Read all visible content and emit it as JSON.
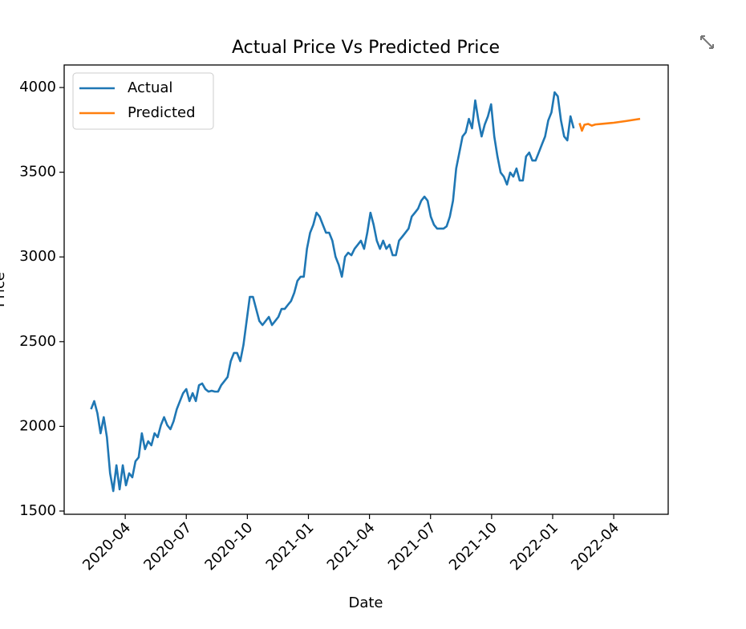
{
  "chart_data": {
    "type": "line",
    "title": "Actual Price Vs Predicted Price",
    "xlabel": "Date",
    "ylabel": "Price",
    "xlim": [
      2020.0,
      2022.473
    ],
    "ylim": [
      1481,
      4133
    ],
    "xticks": [
      {
        "value": 2020.25,
        "label": "2020-04"
      },
      {
        "value": 2020.5,
        "label": "2020-07"
      },
      {
        "value": 2020.75,
        "label": "2020-10"
      },
      {
        "value": 2021.0,
        "label": "2021-01"
      },
      {
        "value": 2021.25,
        "label": "2021-04"
      },
      {
        "value": 2021.5,
        "label": "2021-07"
      },
      {
        "value": 2021.75,
        "label": "2021-10"
      },
      {
        "value": 2022.0,
        "label": "2022-01"
      },
      {
        "value": 2022.25,
        "label": "2022-04"
      }
    ],
    "yticks": [
      1500,
      2000,
      2500,
      3000,
      3500,
      4000
    ],
    "legend": "upper left",
    "grid": false,
    "series": [
      {
        "name": "Actual",
        "color": "#1f77b4",
        "x": [
          2020.11,
          2020.123,
          2020.136,
          2020.149,
          2020.162,
          2020.175,
          2020.188,
          2020.201,
          2020.214,
          2020.227,
          2020.24,
          2020.253,
          2020.266,
          2020.279,
          2020.292,
          2020.305,
          2020.318,
          2020.331,
          2020.344,
          2020.357,
          2020.37,
          2020.383,
          2020.396,
          2020.409,
          2020.422,
          2020.435,
          2020.448,
          2020.461,
          2020.474,
          2020.487,
          2020.5,
          2020.513,
          2020.526,
          2020.539,
          2020.552,
          2020.565,
          2020.578,
          2020.591,
          2020.604,
          2020.617,
          2020.63,
          2020.643,
          2020.656,
          2020.669,
          2020.682,
          2020.695,
          2020.708,
          2020.721,
          2020.734,
          2020.747,
          2020.76,
          2020.773,
          2020.786,
          2020.799,
          2020.812,
          2020.825,
          2020.838,
          2020.851,
          2020.864,
          2020.877,
          2020.89,
          2020.903,
          2020.916,
          2020.929,
          2020.942,
          2020.955,
          2020.968,
          2020.981,
          2020.994,
          2021.007,
          2021.02,
          2021.033,
          2021.046,
          2021.059,
          2021.072,
          2021.085,
          2021.098,
          2021.111,
          2021.124,
          2021.137,
          2021.15,
          2021.163,
          2021.176,
          2021.189,
          2021.202,
          2021.215,
          2021.228,
          2021.241,
          2021.254,
          2021.267,
          2021.28,
          2021.293,
          2021.306,
          2021.319,
          2021.332,
          2021.345,
          2021.358,
          2021.371,
          2021.384,
          2021.397,
          2021.41,
          2021.423,
          2021.436,
          2021.449,
          2021.462,
          2021.475,
          2021.488,
          2021.501,
          2021.514,
          2021.527,
          2021.54,
          2021.553,
          2021.566,
          2021.579,
          2021.592,
          2021.605,
          2021.618,
          2021.631,
          2021.644,
          2021.657,
          2021.67,
          2021.683,
          2021.696,
          2021.709,
          2021.722,
          2021.735,
          2021.748,
          2021.761,
          2021.774,
          2021.787,
          2021.8,
          2021.813,
          2021.826,
          2021.839,
          2021.852,
          2021.865,
          2021.878,
          2021.891,
          2021.904,
          2021.917,
          2021.93,
          2021.943,
          2021.956,
          2021.969,
          2021.982,
          2021.995,
          2022.008,
          2022.021,
          2022.034,
          2022.047,
          2022.06,
          2022.073,
          2022.086
        ],
        "values": [
          2101,
          2149,
          2078,
          1959,
          2054,
          1936,
          1723,
          1618,
          1770,
          1628,
          1770,
          1652,
          1723,
          1699,
          1794,
          1817,
          1959,
          1865,
          1912,
          1888,
          1959,
          1936,
          2007,
          2054,
          2007,
          1983,
          2030,
          2101,
          2149,
          2196,
          2220,
          2149,
          2196,
          2149,
          2243,
          2253,
          2220,
          2205,
          2210,
          2205,
          2205,
          2243,
          2267,
          2291,
          2385,
          2433,
          2433,
          2385,
          2480,
          2622,
          2764,
          2764,
          2693,
          2622,
          2598,
          2622,
          2646,
          2598,
          2622,
          2646,
          2693,
          2693,
          2717,
          2740,
          2788,
          2859,
          2883,
          2883,
          3048,
          3143,
          3190,
          3261,
          3238,
          3190,
          3143,
          3143,
          3096,
          3001,
          2954,
          2883,
          3001,
          3025,
          3010,
          3048,
          3072,
          3096,
          3048,
          3143,
          3261,
          3190,
          3096,
          3048,
          3096,
          3048,
          3072,
          3010,
          3010,
          3096,
          3119,
          3143,
          3167,
          3238,
          3261,
          3285,
          3332,
          3356,
          3332,
          3238,
          3190,
          3167,
          3167,
          3167,
          3181,
          3238,
          3332,
          3522,
          3616,
          3711,
          3735,
          3815,
          3759,
          3924,
          3806,
          3711,
          3782,
          3830,
          3901,
          3711,
          3593,
          3498,
          3474,
          3427,
          3498,
          3474,
          3522,
          3451,
          3451,
          3593,
          3616,
          3569,
          3569,
          3616,
          3664,
          3711,
          3806,
          3853,
          3972,
          3948,
          3806,
          3711,
          3688,
          3830,
          3759
        ]
      },
      {
        "name": "Predicted",
        "color": "#ff7f0e",
        "x": [
          2022.11,
          2022.12,
          2022.13,
          2022.145,
          2022.16,
          2022.175,
          2022.2,
          2022.25,
          2022.3,
          2022.358
        ],
        "values": [
          3790,
          3745,
          3780,
          3785,
          3775,
          3782,
          3785,
          3792,
          3802,
          3815
        ]
      }
    ]
  }
}
